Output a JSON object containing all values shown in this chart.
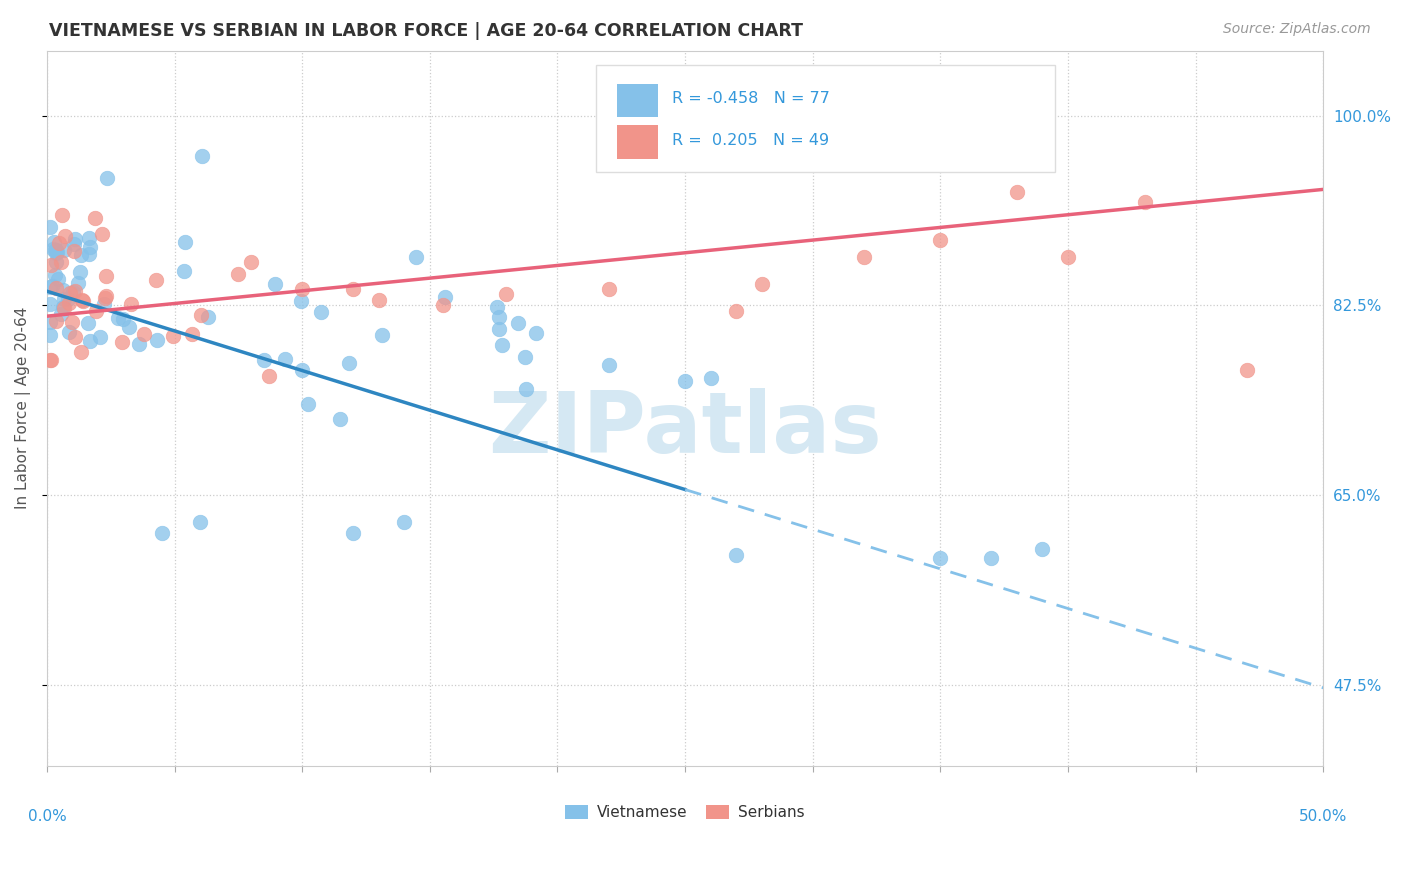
{
  "title": "VIETNAMESE VS SERBIAN IN LABOR FORCE | AGE 20-64 CORRELATION CHART",
  "source_text": "Source: ZipAtlas.com",
  "ylabel": "In Labor Force | Age 20-64",
  "ytick_labels": [
    "47.5%",
    "65.0%",
    "82.5%",
    "100.0%"
  ],
  "ytick_values": [
    0.475,
    0.65,
    0.825,
    1.0
  ],
  "xlim": [
    0.0,
    0.5
  ],
  "ylim": [
    0.4,
    1.06
  ],
  "R_vietnamese": -0.458,
  "N_vietnamese": 77,
  "R_serbian": 0.205,
  "N_serbian": 49,
  "color_vietnamese": "#85C1E9",
  "color_serbian": "#F1948A",
  "color_trend_blue": "#2E86C1",
  "color_trend_pink": "#E8627A",
  "color_trend_dash": "#85C1E9",
  "watermark_color": "#D5E8F3",
  "trend_blue_x0": 0.0,
  "trend_blue_y0": 0.838,
  "trend_blue_x1": 0.25,
  "trend_blue_y1": 0.655,
  "trend_blue_solid_end": 0.25,
  "trend_pink_x0": 0.0,
  "trend_pink_y0": 0.815,
  "trend_pink_x1": 0.5,
  "trend_pink_y1": 0.932,
  "legend_r_color": "#3498DB"
}
